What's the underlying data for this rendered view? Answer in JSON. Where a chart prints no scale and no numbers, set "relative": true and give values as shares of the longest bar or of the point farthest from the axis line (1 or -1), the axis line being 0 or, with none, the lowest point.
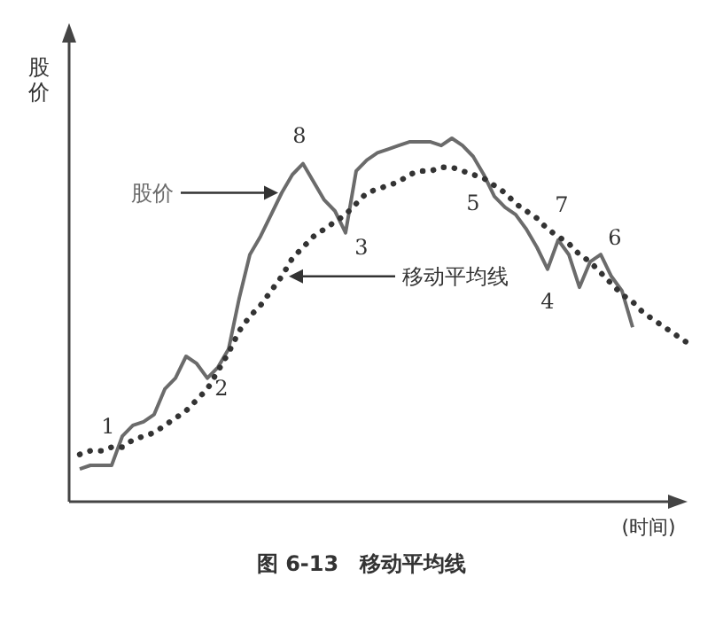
{
  "chart_data": {
    "type": "line",
    "relative": true,
    "title": "图 6-13　移动平均线",
    "xlabel": "(时间)",
    "ylabel": "股价",
    "marker": "none",
    "categories": [
      null,
      null,
      null,
      null,
      null,
      null,
      null,
      null,
      null,
      null,
      null,
      null,
      null,
      null,
      null,
      null,
      null,
      null,
      null,
      null,
      null,
      null,
      null,
      null,
      null,
      null,
      null,
      null,
      null,
      null,
      null,
      null,
      null,
      null,
      null,
      null,
      null,
      null,
      null,
      null,
      null,
      null,
      null,
      null,
      null,
      null,
      null,
      null,
      null,
      null,
      null,
      null,
      null,
      null,
      null,
      null,
      null,
      null
    ],
    "series": [
      {
        "name": "股价",
        "color": "#6b6b6b",
        "line_style": "solid",
        "values": [
          0.09,
          0.1,
          0.1,
          0.1,
          0.18,
          0.21,
          0.22,
          0.24,
          0.31,
          0.34,
          0.4,
          0.38,
          0.34,
          0.37,
          0.42,
          0.56,
          0.68,
          0.73,
          0.79,
          0.85,
          0.9,
          0.93,
          0.88,
          0.83,
          0.8,
          0.74,
          0.91,
          0.94,
          0.96,
          0.97,
          0.98,
          0.99,
          0.99,
          0.99,
          0.98,
          1,
          0.98,
          0.95,
          0.9,
          0.84,
          0.81,
          0.79,
          0.75,
          0.7,
          0.64,
          0.72,
          0.68,
          0.59,
          0.66,
          0.68,
          0.62,
          0.58,
          0.48,
          null,
          null,
          null,
          null,
          null
        ]
      },
      {
        "name": "移动平均线",
        "color": "#333333",
        "line_style": "dotted",
        "values": [
          0.13,
          0.14,
          0.14,
          0.15,
          0.15,
          0.17,
          0.18,
          0.19,
          0.21,
          0.23,
          0.25,
          0.28,
          0.31,
          0.36,
          0.41,
          0.47,
          0.51,
          0.54,
          0.58,
          0.62,
          0.67,
          0.7,
          0.73,
          0.75,
          0.77,
          0.79,
          0.82,
          0.85,
          0.86,
          0.87,
          0.88,
          0.9,
          0.91,
          0.91,
          0.92,
          0.92,
          0.91,
          0.9,
          0.89,
          0.87,
          0.85,
          0.82,
          0.8,
          0.78,
          0.75,
          0.73,
          0.71,
          0.68,
          0.66,
          0.63,
          0.6,
          0.57,
          0.55,
          0.52,
          0.5,
          0.48,
          0.46,
          0.44
        ]
      }
    ],
    "annotations": [
      "1",
      "2",
      "3",
      "4",
      "5",
      "6",
      "7",
      "8"
    ]
  }
}
